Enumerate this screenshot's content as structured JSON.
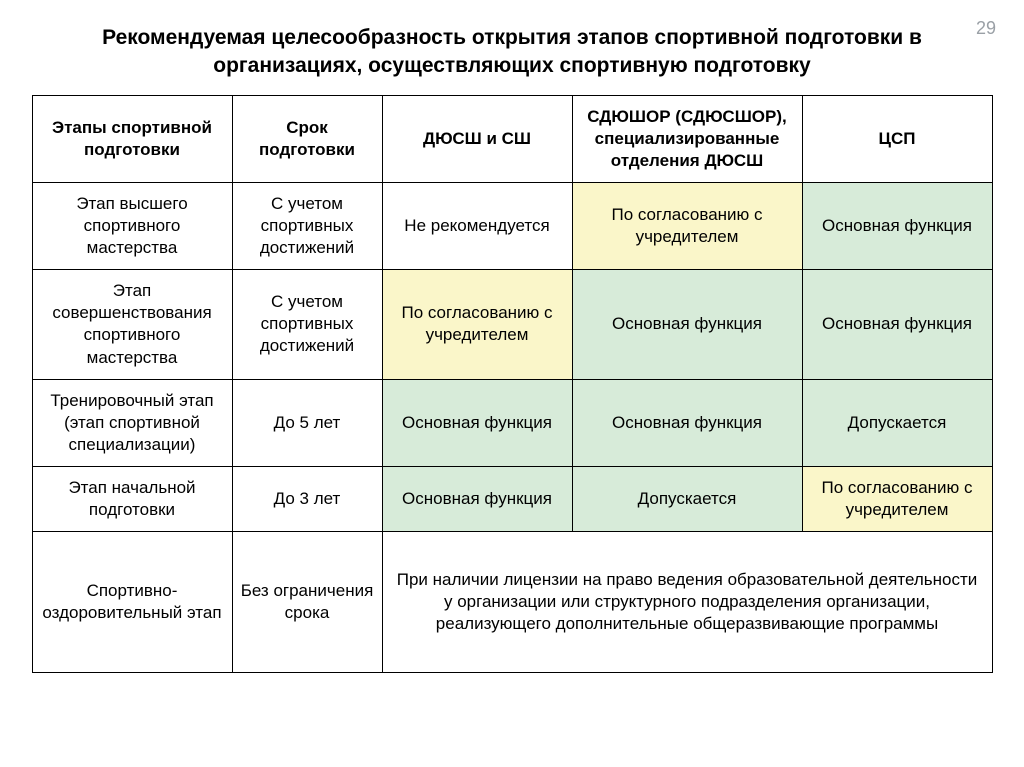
{
  "page_number": "29",
  "title": "Рекомендуемая целесообразность открытия этапов спортивной подготовки в организациях, осуществляющих спортивную подготовку",
  "colors": {
    "green": "#d7ebd9",
    "yellow": "#faf6c9",
    "white": "#ffffff",
    "border": "#000000",
    "page_num": "#9aa0a6"
  },
  "table": {
    "headers": [
      "Этапы спортивной подготовки",
      "Срок подготовки",
      "ДЮСШ и СШ",
      "СДЮШОР (СДЮСШОР), специализированные отделения ДЮСШ",
      "ЦСП"
    ],
    "rows": [
      {
        "stage": "Этап высшего спортивного мастерства",
        "term": "С учетом спортивных достижений",
        "c2": {
          "text": "Не рекомендуется",
          "bg": "white"
        },
        "c3": {
          "text": "По согласованию с учредителем",
          "bg": "yellow"
        },
        "c4": {
          "text": "Основная функция",
          "bg": "green"
        }
      },
      {
        "stage": "Этап совершенствования спортивного мастерства",
        "term": "С учетом спортивных достижений",
        "c2": {
          "text": "По согласованию с учредителем",
          "bg": "yellow"
        },
        "c3": {
          "text": "Основная функция",
          "bg": "green"
        },
        "c4": {
          "text": "Основная функция",
          "bg": "green"
        }
      },
      {
        "stage": "Тренировочный этап (этап спортивной специализации)",
        "term": "До 5 лет",
        "c2": {
          "text": "Основная функция",
          "bg": "green"
        },
        "c3": {
          "text": "Основная функция",
          "bg": "green"
        },
        "c4": {
          "text": "Допускается",
          "bg": "green"
        }
      },
      {
        "stage": "Этап начальной подготовки",
        "term": "До 3 лет",
        "c2": {
          "text": "Основная функция",
          "bg": "green"
        },
        "c3": {
          "text": "Допускается",
          "bg": "green"
        },
        "c4": {
          "text": "По согласованию с учредителем",
          "bg": "yellow"
        }
      }
    ],
    "last_row": {
      "stage": "Спортивно-оздоровительный этап",
      "term": "Без ограничения срока",
      "merged": "При наличии лицензии на право ведения образовательной деятельности у организации или структурного подразделения организации, реализующего дополнительные общеразвивающие программы"
    }
  }
}
